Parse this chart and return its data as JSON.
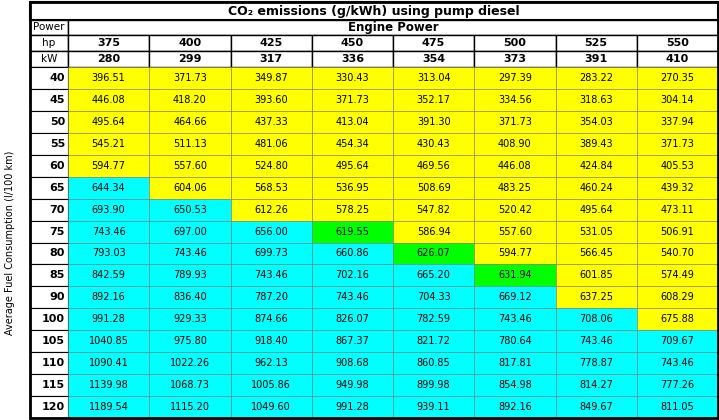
{
  "title": "CO₂ emissions (g/kWh) using pump diesel",
  "col_header_hp": [
    "375",
    "400",
    "425",
    "450",
    "475",
    "500",
    "525",
    "550"
  ],
  "col_header_kw": [
    "280",
    "299",
    "317",
    "336",
    "354",
    "373",
    "391",
    "410"
  ],
  "row_labels": [
    40,
    45,
    50,
    55,
    60,
    65,
    70,
    75,
    80,
    85,
    90,
    100,
    105,
    110,
    115,
    120
  ],
  "data": [
    [
      396.51,
      371.73,
      349.87,
      330.43,
      313.04,
      297.39,
      283.22,
      270.35
    ],
    [
      446.08,
      418.2,
      393.6,
      371.73,
      352.17,
      334.56,
      318.63,
      304.14
    ],
    [
      495.64,
      464.66,
      437.33,
      413.04,
      391.3,
      371.73,
      354.03,
      337.94
    ],
    [
      545.21,
      511.13,
      481.06,
      454.34,
      430.43,
      408.9,
      389.43,
      371.73
    ],
    [
      594.77,
      557.6,
      524.8,
      495.64,
      469.56,
      446.08,
      424.84,
      405.53
    ],
    [
      644.34,
      604.06,
      568.53,
      536.95,
      508.69,
      483.25,
      460.24,
      439.32
    ],
    [
      693.9,
      650.53,
      612.26,
      578.25,
      547.82,
      520.42,
      495.64,
      473.11
    ],
    [
      743.46,
      697.0,
      656.0,
      619.55,
      586.94,
      557.6,
      531.05,
      506.91
    ],
    [
      793.03,
      743.46,
      699.73,
      660.86,
      626.07,
      594.77,
      566.45,
      540.7
    ],
    [
      842.59,
      789.93,
      743.46,
      702.16,
      665.2,
      631.94,
      601.85,
      574.49
    ],
    [
      892.16,
      836.4,
      787.2,
      743.46,
      704.33,
      669.12,
      637.25,
      608.29
    ],
    [
      991.28,
      929.33,
      874.66,
      826.07,
      782.59,
      743.46,
      708.06,
      675.88
    ],
    [
      1040.85,
      975.8,
      918.4,
      867.37,
      821.72,
      780.64,
      743.46,
      709.67
    ],
    [
      1090.41,
      1022.26,
      962.13,
      908.68,
      860.85,
      817.81,
      778.87,
      743.46
    ],
    [
      1139.98,
      1068.73,
      1005.86,
      949.98,
      899.98,
      854.98,
      814.27,
      777.26
    ],
    [
      1189.54,
      1115.2,
      1049.6,
      991.28,
      939.11,
      892.16,
      849.67,
      811.05
    ]
  ],
  "cell_colors": [
    [
      "#FFFF00",
      "#FFFF00",
      "#FFFF00",
      "#FFFF00",
      "#FFFF00",
      "#FFFF00",
      "#FFFF00",
      "#FFFF00"
    ],
    [
      "#FFFF00",
      "#FFFF00",
      "#FFFF00",
      "#FFFF00",
      "#FFFF00",
      "#FFFF00",
      "#FFFF00",
      "#FFFF00"
    ],
    [
      "#FFFF00",
      "#FFFF00",
      "#FFFF00",
      "#FFFF00",
      "#FFFF00",
      "#FFFF00",
      "#FFFF00",
      "#FFFF00"
    ],
    [
      "#FFFF00",
      "#FFFF00",
      "#FFFF00",
      "#FFFF00",
      "#FFFF00",
      "#FFFF00",
      "#FFFF00",
      "#FFFF00"
    ],
    [
      "#FFFF00",
      "#FFFF00",
      "#FFFF00",
      "#FFFF00",
      "#FFFF00",
      "#FFFF00",
      "#FFFF00",
      "#FFFF00"
    ],
    [
      "#00FFFF",
      "#FFFF00",
      "#FFFF00",
      "#FFFF00",
      "#FFFF00",
      "#FFFF00",
      "#FFFF00",
      "#FFFF00"
    ],
    [
      "#00FFFF",
      "#00FFFF",
      "#FFFF00",
      "#FFFF00",
      "#FFFF00",
      "#FFFF00",
      "#FFFF00",
      "#FFFF00"
    ],
    [
      "#00FFFF",
      "#00FFFF",
      "#00FFFF",
      "#00FF00",
      "#FFFF00",
      "#FFFF00",
      "#FFFF00",
      "#FFFF00"
    ],
    [
      "#00FFFF",
      "#00FFFF",
      "#00FFFF",
      "#00FFFF",
      "#00FF00",
      "#FFFF00",
      "#FFFF00",
      "#FFFF00"
    ],
    [
      "#00FFFF",
      "#00FFFF",
      "#00FFFF",
      "#00FFFF",
      "#00FFFF",
      "#00FF00",
      "#FFFF00",
      "#FFFF00"
    ],
    [
      "#00FFFF",
      "#00FFFF",
      "#00FFFF",
      "#00FFFF",
      "#00FFFF",
      "#00FFFF",
      "#FFFF00",
      "#FFFF00"
    ],
    [
      "#00FFFF",
      "#00FFFF",
      "#00FFFF",
      "#00FFFF",
      "#00FFFF",
      "#00FFFF",
      "#00FFFF",
      "#FFFF00"
    ],
    [
      "#00FFFF",
      "#00FFFF",
      "#00FFFF",
      "#00FFFF",
      "#00FFFF",
      "#00FFFF",
      "#00FFFF",
      "#00FFFF"
    ],
    [
      "#00FFFF",
      "#00FFFF",
      "#00FFFF",
      "#00FFFF",
      "#00FFFF",
      "#00FFFF",
      "#00FFFF",
      "#00FFFF"
    ],
    [
      "#00FFFF",
      "#00FFFF",
      "#00FFFF",
      "#00FFFF",
      "#00FFFF",
      "#00FFFF",
      "#00FFFF",
      "#00FFFF"
    ],
    [
      "#00FFFF",
      "#00FFFF",
      "#00FFFF",
      "#00FFFF",
      "#00FFFF",
      "#00FFFF",
      "#00FFFF",
      "#00FFFF"
    ]
  ],
  "ylabel": "Average Fuel Consumption (l/100 km)",
  "power_label": "Power",
  "engine_power_label": "Engine Power",
  "hp_label": "hp",
  "kw_label": "kW",
  "title_fontsize": 9,
  "header_fontsize": 8,
  "data_fontsize": 7,
  "rowlabel_fontsize": 8
}
